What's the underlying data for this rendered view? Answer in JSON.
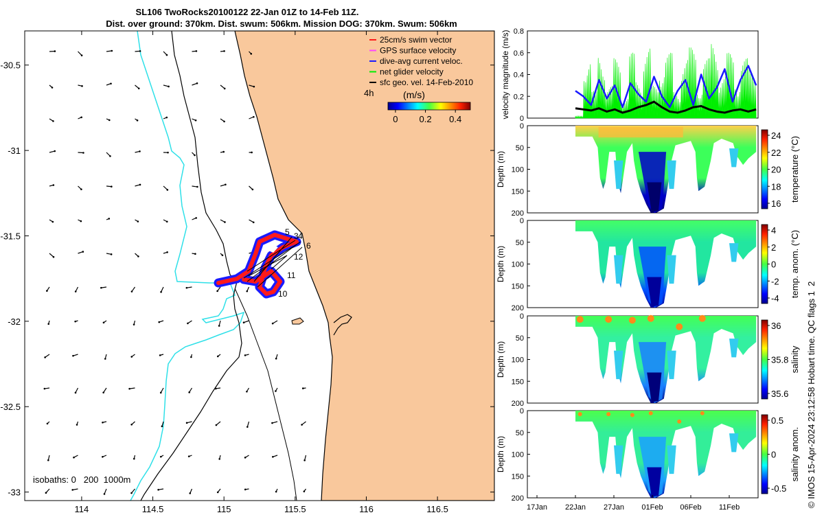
{
  "header": {
    "title_line1": "SL106 TwoRocks20100122 22-Jan 01Z to 14-Feb 11Z.",
    "title_line2": "Dist. over ground: 370km. Dist. swum: 506km. Mission DOG: 370km. Swum: 506km"
  },
  "side_credit": "© IMOS 15-Apr-2024 23:12:58 Hobart time. QC flags 1  2",
  "colors": {
    "land": "#f9c89c",
    "isobath_shallow": "#2ee0e8",
    "isobath_deep": "#000000",
    "glider_red": "#ff1a1a",
    "glider_blue": "#1a1aff",
    "net_green": "#00ee00",
    "geo_black": "#000000",
    "gps_magenta": "#ff44ff"
  },
  "chart_data": [
    {
      "type": "map",
      "name": "glider-track-map",
      "xlim": [
        113.6,
        116.9
      ],
      "ylim": [
        -33.05,
        -30.3
      ],
      "x_ticks": [
        "114",
        "114.5",
        "115",
        "115.5",
        "116",
        "116.5"
      ],
      "x_tick_values": [
        114,
        114.5,
        115,
        115.5,
        116,
        116.5
      ],
      "y_ticks": [
        "-30.5",
        "-31",
        "-31.5",
        "-32",
        "-32.5",
        "-33"
      ],
      "y_tick_values": [
        -30.5,
        -31,
        -31.5,
        -32,
        -32.5,
        -33
      ],
      "legend": [
        {
          "label": "25cm/s swim vector",
          "color": "#ff1a1a"
        },
        {
          "label": "GPS surface velocity",
          "color": "#ff44ff"
        },
        {
          "label": "dive-avg current veloc.",
          "color": "#1a1aff"
        },
        {
          "label": "net glider velocity",
          "color": "#00ee00"
        },
        {
          "label": "sfc geo. vel. 14-Feb-2010",
          "color": "#000000"
        }
      ],
      "time_label": "4h",
      "colorbar": {
        "title": "(m/s)",
        "ticks": [
          "0",
          "0.2",
          "0.4"
        ],
        "tick_values": [
          0,
          0.2,
          0.4
        ],
        "range": [
          -0.05,
          0.5
        ]
      },
      "isobath_label": "isobaths: 0   200  1000m",
      "waypoint_labels": [
        "5",
        "3",
        "4",
        "6",
        "12",
        "11",
        "10"
      ]
    },
    {
      "type": "line",
      "name": "velocity-magnitude",
      "ylabel": "velocity magnitude (m/s)",
      "ylim": [
        0,
        0.8
      ],
      "y_ticks": [
        "0",
        "0.2",
        "0.4",
        "0.6",
        "0.8"
      ],
      "y_tick_values": [
        0,
        0.2,
        0.4,
        0.6,
        0.8
      ],
      "series": [
        {
          "name": "net glider velocity",
          "color": "#00ee00",
          "values_day": [
            0,
            0.55,
            0.25,
            0.6,
            0.3,
            0.55,
            0.2,
            0.6,
            0.35,
            0.65,
            0.3,
            0.5,
            0.6,
            0.25,
            0.55,
            0.65,
            0.3,
            0.55,
            0.7,
            0.4,
            0.6,
            0.35,
            0.55,
            0.45
          ]
        },
        {
          "name": "dive-avg current veloc.",
          "color": "#1a1aff",
          "values_day": [
            0.25,
            0.2,
            0.12,
            0.35,
            0.18,
            0.3,
            0.1,
            0.32,
            0.22,
            0.15,
            0.38,
            0.2,
            0.1,
            0.25,
            0.35,
            0.12,
            0.4,
            0.18,
            0.28,
            0.45,
            0.15,
            0.35,
            0.48,
            0.3
          ]
        },
        {
          "name": "sfc geo. vel. 14-Feb-2010",
          "color": "#000000",
          "values_day": [
            0.09,
            0.08,
            0.07,
            0.09,
            0.06,
            0.08,
            0.05,
            0.07,
            0.1,
            0.12,
            0.15,
            0.1,
            0.06,
            0.05,
            0.07,
            0.1,
            0.11,
            0.08,
            0.06,
            0.05,
            0.07,
            0.08,
            0.06,
            0.08
          ]
        }
      ]
    },
    {
      "type": "heatmap",
      "name": "temperature-section",
      "ylabel": "Depth (m)",
      "y_ticks": [
        "0",
        "50",
        "100",
        "150",
        "200"
      ],
      "colorbar_label": "temperature (°C)",
      "colorbar_ticks": [
        "24",
        "22",
        "20",
        "18",
        "16"
      ],
      "colorbar_range": [
        15,
        25
      ]
    },
    {
      "type": "heatmap",
      "name": "temp-anomaly-section",
      "ylabel": "Depth (m)",
      "y_ticks": [
        "0",
        "50",
        "100",
        "150",
        "200"
      ],
      "colorbar_label": "temp. anom. (°C)",
      "colorbar_ticks": [
        "4",
        "2",
        "0",
        "-2",
        "-4"
      ],
      "colorbar_range": [
        -4,
        4
      ]
    },
    {
      "type": "heatmap",
      "name": "salinity-section",
      "ylabel": "Depth (m)",
      "y_ticks": [
        "0",
        "50",
        "100",
        "150",
        "200"
      ],
      "colorbar_label": "salinity",
      "colorbar_ticks": [
        "36",
        "35.8",
        "35.6"
      ],
      "colorbar_range": [
        35.45,
        36.15
      ]
    },
    {
      "type": "heatmap",
      "name": "salinity-anomaly-section",
      "ylabel": "Depth (m)",
      "y_ticks": [
        "0",
        "50",
        "100",
        "150",
        "200"
      ],
      "colorbar_label": "salinity anom.",
      "colorbar_ticks": [
        "0.5",
        "0",
        "-0.5"
      ],
      "colorbar_range": [
        -0.55,
        0.55
      ],
      "x_ticks": [
        "17Jan",
        "22Jan",
        "27Jan",
        "01Feb",
        "06Feb",
        "11Feb"
      ]
    }
  ]
}
